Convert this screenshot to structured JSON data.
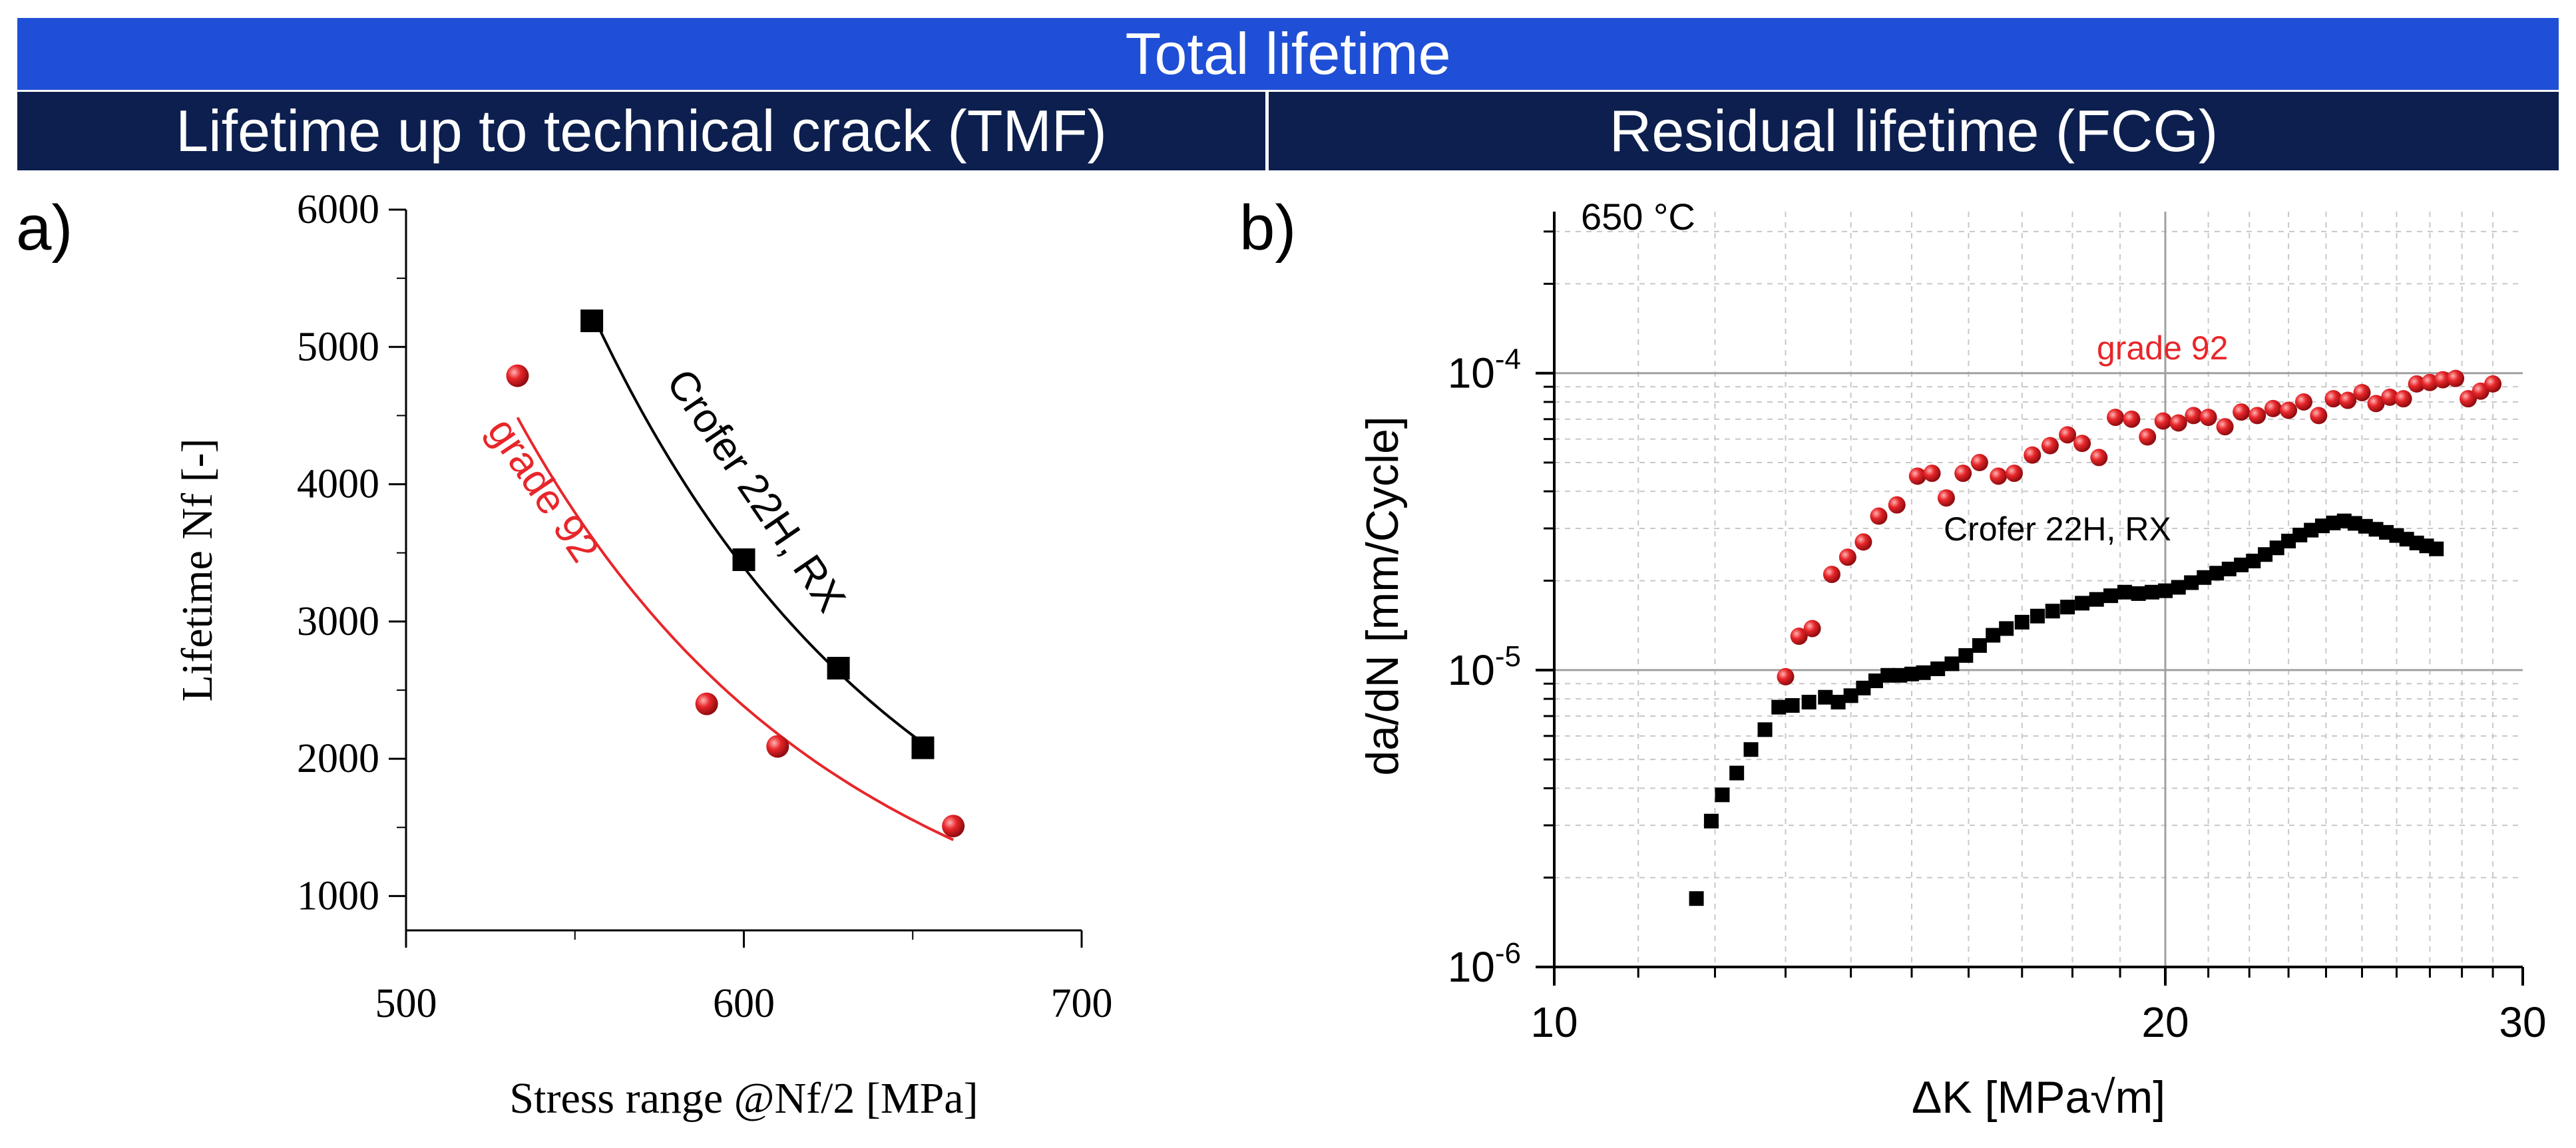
{
  "header": {
    "total_title": "Total lifetime",
    "left_title": "Lifetime up to technical crack (TMF)",
    "right_title": "Residual lifetime (FCG)"
  },
  "colors": {
    "banner_total": "#1f4fd6",
    "banner_sub": "#0c1f4e",
    "grade92": "#e8262a",
    "crofer": "#000000"
  },
  "chart_data": [
    {
      "type": "scatter",
      "panel_label": "a)",
      "xlabel": "Stress range @Nf/2 [MPa]",
      "ylabel": "Lifetime Nf [-]",
      "xlim": [
        500,
        700
      ],
      "ylim": [
        750,
        6000
      ],
      "xticks": [
        500,
        600,
        700
      ],
      "yticks": [
        1000,
        2000,
        3000,
        4000,
        5000,
        6000
      ],
      "grid": false,
      "series": [
        {
          "name": "Crofer 22H, RX",
          "marker": "square",
          "color": "#000000",
          "x": [
            555,
            600,
            628,
            653
          ],
          "y": [
            5190,
            3450,
            2660,
            2080
          ],
          "fit": true
        },
        {
          "name": "grade 92",
          "marker": "sphere",
          "color": "#e8262a",
          "x": [
            533,
            589,
            610,
            662
          ],
          "y": [
            4790,
            2400,
            2090,
            1510
          ],
          "fit": true
        }
      ]
    },
    {
      "type": "scatter",
      "panel_label": "b)",
      "annotation": "650 °C",
      "xlabel": "ΔK [MPa√m]",
      "ylabel": "da/dN [mm/Cycle]",
      "xscale": "log",
      "yscale": "log",
      "xlim": [
        10,
        30
      ],
      "ylim": [
        1e-06,
        0.00035
      ],
      "xticks": [
        10,
        20,
        30
      ],
      "ytick_labels": [
        {
          "value": 1e-06,
          "base": "10",
          "exp": "-6"
        },
        {
          "value": 1e-05,
          "base": "10",
          "exp": "-5"
        },
        {
          "value": 0.0001,
          "base": "10",
          "exp": "-4"
        }
      ],
      "grid": true,
      "series": [
        {
          "name": "grade 92",
          "marker": "sphere",
          "color": "#e8262a",
          "x": [
            13.0,
            13.2,
            13.4,
            13.7,
            13.95,
            14.2,
            14.45,
            14.75,
            15.1,
            15.35,
            15.6,
            15.9,
            16.2,
            16.55,
            16.85,
            17.2,
            17.55,
            17.9,
            18.2,
            18.55,
            18.9,
            19.25,
            19.6,
            19.95,
            20.3,
            20.65,
            21.0,
            21.4,
            21.8,
            22.2,
            22.6,
            23.0,
            23.4,
            23.8,
            24.2,
            24.6,
            25.0,
            25.4,
            25.8,
            26.2,
            26.6,
            27.0,
            27.4,
            27.8,
            28.2,
            28.6,
            29.0
          ],
          "y": [
            9.5e-06,
            1.3e-05,
            1.38e-05,
            2.1e-05,
            2.4e-05,
            2.7e-05,
            3.3e-05,
            3.6e-05,
            4.5e-05,
            4.6e-05,
            3.8e-05,
            4.6e-05,
            5e-05,
            4.5e-05,
            4.6e-05,
            5.3e-05,
            5.7e-05,
            6.2e-05,
            5.8e-05,
            5.2e-05,
            7.1e-05,
            7e-05,
            6.1e-05,
            6.9e-05,
            6.8e-05,
            7.2e-05,
            7.1e-05,
            6.6e-05,
            7.4e-05,
            7.2e-05,
            7.6e-05,
            7.5e-05,
            8e-05,
            7.2e-05,
            8.2e-05,
            8.1e-05,
            8.6e-05,
            7.9e-05,
            8.3e-05,
            8.2e-05,
            9.2e-05,
            9.3e-05,
            9.5e-05,
            9.6e-05,
            8.2e-05,
            8.7e-05,
            9.2e-05
          ]
        },
        {
          "name": "Crofer 22H, RX",
          "marker": "square",
          "color": "#000000",
          "x": [
            11.75,
            11.95,
            12.1,
            12.3,
            12.5,
            12.7,
            12.9,
            13.1,
            13.35,
            13.6,
            13.8,
            14.0,
            14.2,
            14.4,
            14.6,
            14.8,
            15.0,
            15.2,
            15.45,
            15.7,
            15.95,
            16.2,
            16.45,
            16.7,
            17.0,
            17.3,
            17.6,
            17.9,
            18.2,
            18.5,
            18.8,
            19.1,
            19.4,
            19.7,
            20.0,
            20.3,
            20.6,
            20.9,
            21.2,
            21.5,
            21.8,
            22.1,
            22.4,
            22.7,
            23.0,
            23.3,
            23.6,
            23.9,
            24.2,
            24.5,
            24.8,
            25.1,
            25.4,
            25.7,
            26.0,
            26.3,
            26.6,
            26.9,
            27.2
          ],
          "y": [
            1.7e-06,
            3.1e-06,
            3.8e-06,
            4.5e-06,
            5.4e-06,
            6.3e-06,
            7.5e-06,
            7.6e-06,
            7.8e-06,
            8.1e-06,
            7.8e-06,
            8.2e-06,
            8.7e-06,
            9.2e-06,
            9.6e-06,
            9.6e-06,
            9.7e-06,
            9.8e-06,
            1.01e-05,
            1.05e-05,
            1.12e-05,
            1.21e-05,
            1.31e-05,
            1.38e-05,
            1.45e-05,
            1.52e-05,
            1.58e-05,
            1.63e-05,
            1.68e-05,
            1.73e-05,
            1.78e-05,
            1.83e-05,
            1.81e-05,
            1.83e-05,
            1.85e-05,
            1.9e-05,
            1.97e-05,
            2.05e-05,
            2.12e-05,
            2.19e-05,
            2.26e-05,
            2.33e-05,
            2.45e-05,
            2.58e-05,
            2.72e-05,
            2.85e-05,
            2.96e-05,
            3.06e-05,
            3.13e-05,
            3.18e-05,
            3.12e-05,
            3.05e-05,
            2.98e-05,
            2.91e-05,
            2.84e-05,
            2.76e-05,
            2.68e-05,
            2.62e-05,
            2.56e-05
          ]
        }
      ]
    }
  ]
}
